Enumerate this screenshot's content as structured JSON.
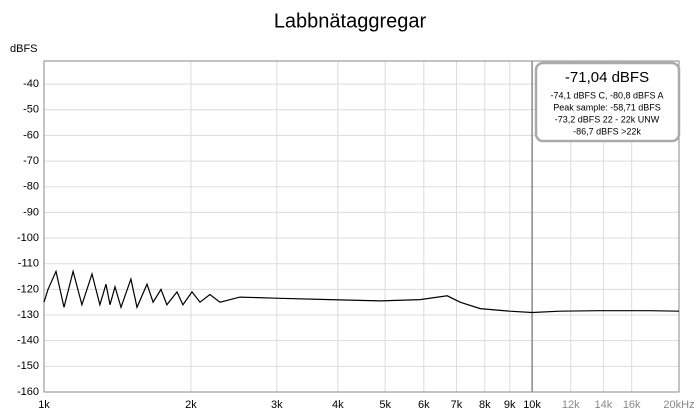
{
  "chart_data": {
    "type": "line",
    "title": "Labbnätaggregar",
    "ylabel": "dBFS",
    "xscale": "log",
    "xlim": [
      1000,
      20000
    ],
    "ylim": [
      -160,
      -31
    ],
    "grid": true,
    "cursor_x": 10000,
    "xticks": [
      {
        "value": 1000,
        "label": "1k"
      },
      {
        "value": 2000,
        "label": "2k"
      },
      {
        "value": 3000,
        "label": "3k"
      },
      {
        "value": 4000,
        "label": "4k"
      },
      {
        "value": 5000,
        "label": "5k"
      },
      {
        "value": 6000,
        "label": "6k"
      },
      {
        "value": 7000,
        "label": "7k"
      },
      {
        "value": 8000,
        "label": "8k"
      },
      {
        "value": 9000,
        "label": "9k"
      },
      {
        "value": 10000,
        "label": "10k"
      },
      {
        "value": 12000,
        "label": "12k"
      },
      {
        "value": 14000,
        "label": "14k"
      },
      {
        "value": 16000,
        "label": "16k"
      },
      {
        "value": 20000,
        "label": "20kHz"
      }
    ],
    "yticks": [
      -40,
      -50,
      -60,
      -70,
      -80,
      -90,
      -100,
      -110,
      -120,
      -130,
      -140,
      -150,
      -160
    ],
    "annotations": [
      "-71,04 dBFS",
      "-74,1 dBFS C, -80,8 dBFS A",
      "Peak sample: -58,71 dBFS",
      "-73,2 dBFS 22 - 22k UNW",
      "-86,7 dBFS >22k"
    ],
    "series": [
      {
        "name": "Labbnätaggregar",
        "color": "#000000",
        "x": [
          1000,
          1019,
          1058,
          1099,
          1147,
          1196,
          1254,
          1302,
          1340,
          1365,
          1398,
          1438,
          1507,
          1551,
          1626,
          1673,
          1737,
          1786,
          1873,
          1926,
          2010,
          2087,
          2187,
          2294,
          2521,
          3044,
          3853,
          4878,
          5898,
          6700,
          7120,
          7830,
          9000,
          10000,
          11400,
          13700,
          17400,
          20000
        ],
        "values": [
          -125,
          -120,
          -113,
          -127,
          -113,
          -126,
          -114,
          -126,
          -118,
          -126,
          -119,
          -127,
          -116,
          -127,
          -118,
          -125,
          -120,
          -126,
          -121,
          -126,
          -121,
          -125,
          -122,
          -125,
          -123,
          -123.5,
          -124,
          -124.5,
          -124,
          -122.5,
          -125,
          -127.5,
          -128.5,
          -129,
          -128.5,
          -128.3,
          -128.3,
          -128.5
        ]
      }
    ]
  }
}
